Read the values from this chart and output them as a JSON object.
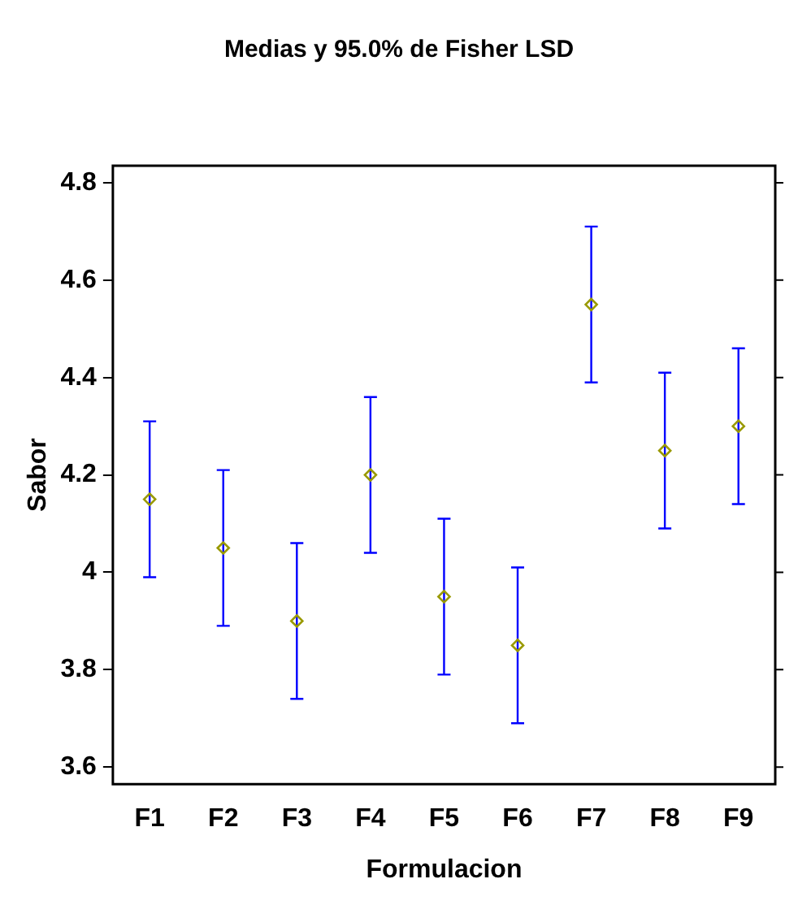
{
  "chart_data": {
    "type": "scatter",
    "title": "Medias y 95.0% de Fisher LSD",
    "xlabel": "Formulacion",
    "ylabel": "Sabor",
    "categories": [
      "F1",
      "F2",
      "F3",
      "F4",
      "F5",
      "F6",
      "F7",
      "F8",
      "F9"
    ],
    "series": [
      {
        "color": "#999900",
        "values": [
          4.15,
          4.05,
          3.9,
          4.2,
          3.95,
          3.85,
          4.55,
          4.25,
          4.3
        ],
        "errors": [
          0.16,
          0.16,
          0.16,
          0.16,
          0.16,
          0.16,
          0.16,
          0.16,
          0.16
        ]
      }
    ],
    "ylim": [
      3.565,
      4.835
    ],
    "yticks": [
      3.6,
      3.8,
      4,
      4.2,
      4.4,
      4.6,
      4.8
    ],
    "grid": false,
    "legend": false,
    "marker": "diamond"
  }
}
